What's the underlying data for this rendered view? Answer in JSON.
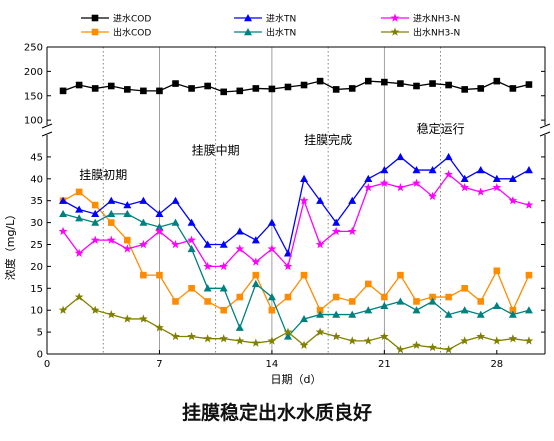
{
  "caption": "挂膜稳定出水水质良好",
  "chart_data": {
    "type": "line",
    "xlabel": "日期（d）",
    "ylabel": "浓度（mg/L）",
    "xlim": [
      0,
      31
    ],
    "xticks": [
      0,
      7,
      14,
      21,
      28
    ],
    "y_lower": {
      "range": [
        0,
        50
      ],
      "ticks": [
        0,
        5,
        10,
        15,
        20,
        25,
        30,
        35,
        40,
        45
      ]
    },
    "y_upper": {
      "range": [
        90,
        250
      ],
      "ticks": [
        100,
        150,
        200,
        250
      ]
    },
    "axis_break": true,
    "stage_lines": [
      7,
      14,
      21
    ],
    "minor_lines": [
      3.5,
      10.5,
      17.5,
      24.5
    ],
    "stages": [
      {
        "label": "挂膜初期",
        "x": 3.5,
        "y": 40
      },
      {
        "label": "挂膜中期",
        "x": 10.5,
        "y": 45.5
      },
      {
        "label": "挂膜完成",
        "x": 17.5,
        "y": 48
      },
      {
        "label": "稳定运行",
        "x": 24.5,
        "y": 50.5
      }
    ],
    "legend_position": "top",
    "x": [
      1,
      2,
      3,
      4,
      5,
      6,
      7,
      8,
      9,
      10,
      11,
      12,
      13,
      14,
      15,
      16,
      17,
      18,
      19,
      20,
      21,
      22,
      23,
      24,
      25,
      26,
      27,
      28,
      29,
      30
    ],
    "series": [
      {
        "name": "进水COD",
        "color": "#000000",
        "marker": "square",
        "axis": "upper",
        "values": [
          160,
          172,
          165,
          170,
          163,
          160,
          160,
          175,
          165,
          170,
          158,
          160,
          165,
          164,
          168,
          172,
          180,
          163,
          165,
          180,
          178,
          175,
          170,
          175,
          172,
          163,
          165,
          180,
          165,
          173
        ]
      },
      {
        "name": "出水COD",
        "color": "#ff8c00",
        "marker": "square",
        "axis": "lower",
        "values": [
          35,
          37,
          34,
          30,
          26,
          18,
          18,
          12,
          15,
          12,
          10,
          13,
          18,
          10,
          13,
          18,
          10,
          13,
          12,
          16,
          13,
          18,
          12,
          13,
          13,
          15,
          12,
          19,
          10,
          18
        ]
      },
      {
        "name": "进水TN",
        "color": "#0000ff",
        "marker": "triangle",
        "axis": "lower",
        "values": [
          35,
          33,
          32,
          35,
          34,
          35,
          32,
          35,
          30,
          25,
          25,
          28,
          26,
          30,
          23,
          40,
          35,
          30,
          35,
          40,
          42,
          45,
          42,
          42,
          45,
          40,
          42,
          40,
          40,
          42
        ]
      },
      {
        "name": "出水TN",
        "color": "#008080",
        "marker": "triangle",
        "axis": "lower",
        "values": [
          32,
          31,
          30,
          32,
          32,
          30,
          29,
          30,
          24,
          15,
          15,
          6,
          16,
          13,
          4,
          8,
          9,
          9,
          9,
          10,
          11,
          12,
          10,
          12,
          9,
          10,
          9,
          11,
          9,
          10
        ]
      },
      {
        "name": "进水NH3-N",
        "color": "#ff00ff",
        "marker": "star",
        "axis": "lower",
        "values": [
          28,
          23,
          26,
          26,
          24,
          25,
          28,
          25,
          26,
          20,
          20,
          24,
          21,
          24,
          20,
          35,
          25,
          28,
          28,
          38,
          39,
          38,
          39,
          36,
          41,
          38,
          37,
          38,
          35,
          34
        ]
      },
      {
        "name": "出水NH3-N",
        "color": "#808000",
        "marker": "star",
        "axis": "lower",
        "values": [
          10,
          13,
          10,
          9,
          8,
          8,
          6,
          4,
          4,
          3.5,
          3.5,
          3,
          2.5,
          3,
          5,
          2,
          5,
          4,
          3,
          3,
          4,
          1,
          2,
          1.5,
          1,
          3,
          4,
          3,
          3.5,
          3
        ]
      }
    ]
  }
}
